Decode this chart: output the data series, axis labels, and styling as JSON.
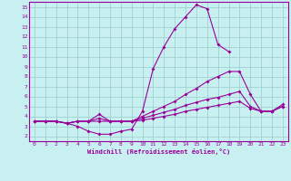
{
  "xlabel": "Windchill (Refroidissement éolien,°C)",
  "background_color": "#c8f0f0",
  "line_color": "#990099",
  "grid_color": "#99cccc",
  "xlim": [
    -0.5,
    23.5
  ],
  "ylim": [
    1.5,
    15.5
  ],
  "xticks": [
    0,
    1,
    2,
    3,
    4,
    5,
    6,
    7,
    8,
    9,
    10,
    11,
    12,
    13,
    14,
    15,
    16,
    17,
    18,
    19,
    20,
    21,
    22,
    23
  ],
  "yticks": [
    2,
    3,
    4,
    5,
    6,
    7,
    8,
    9,
    10,
    11,
    12,
    13,
    14,
    15
  ],
  "line1_x": [
    0,
    1,
    2,
    3,
    4,
    5,
    6,
    7,
    8,
    9,
    10,
    11,
    12,
    13,
    14,
    15,
    16,
    17,
    18,
    19,
    20,
    21,
    22,
    23
  ],
  "line1_y": [
    3.5,
    3.5,
    3.5,
    3.3,
    3.0,
    2.5,
    2.2,
    2.2,
    2.5,
    2.7,
    4.5,
    8.8,
    11.0,
    12.8,
    14.0,
    15.2,
    14.8,
    11.2,
    10.5,
    null,
    null,
    null,
    null,
    null
  ],
  "line2_x": [
    0,
    1,
    2,
    3,
    4,
    5,
    6,
    7,
    8,
    9,
    10,
    11,
    12,
    13,
    14,
    15,
    16,
    17,
    18,
    19,
    20,
    21,
    22,
    23
  ],
  "line2_y": [
    3.5,
    3.5,
    3.5,
    3.3,
    3.5,
    3.5,
    4.2,
    3.5,
    3.5,
    3.5,
    4.0,
    4.5,
    5.0,
    5.5,
    6.2,
    6.8,
    7.5,
    8.0,
    8.5,
    8.5,
    6.2,
    4.5,
    4.5,
    5.2
  ],
  "line3_x": [
    0,
    1,
    2,
    3,
    4,
    5,
    6,
    7,
    8,
    9,
    10,
    11,
    12,
    13,
    14,
    15,
    16,
    17,
    18,
    19,
    20,
    21,
    22,
    23
  ],
  "line3_y": [
    3.5,
    3.5,
    3.5,
    3.3,
    3.5,
    3.5,
    3.8,
    3.5,
    3.5,
    3.5,
    3.8,
    4.1,
    4.4,
    4.7,
    5.1,
    5.4,
    5.7,
    5.9,
    6.2,
    6.5,
    5.0,
    4.5,
    4.5,
    5.0
  ],
  "line4_x": [
    0,
    1,
    2,
    3,
    4,
    5,
    6,
    7,
    8,
    9,
    10,
    11,
    12,
    13,
    14,
    15,
    16,
    17,
    18,
    19,
    20,
    21,
    22,
    23
  ],
  "line4_y": [
    3.5,
    3.5,
    3.5,
    3.3,
    3.5,
    3.5,
    3.5,
    3.5,
    3.5,
    3.5,
    3.6,
    3.8,
    4.0,
    4.2,
    4.5,
    4.7,
    4.9,
    5.1,
    5.3,
    5.5,
    4.8,
    4.5,
    4.5,
    5.0
  ]
}
